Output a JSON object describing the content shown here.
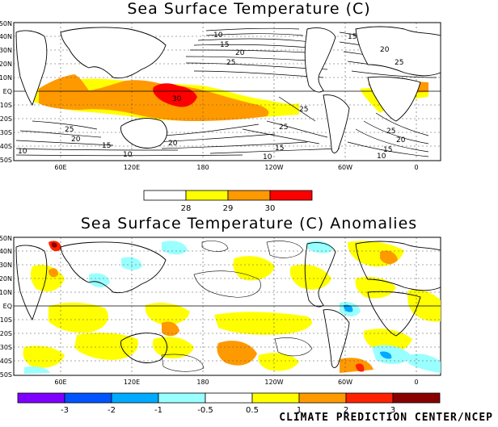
{
  "top": {
    "title": "Sea Surface Temperature (C)",
    "lat_labels": [
      "50N",
      "40N",
      "30N",
      "20N",
      "10N",
      "EQ",
      "10S",
      "20S",
      "30S",
      "40S",
      "50S"
    ],
    "lon_labels": [
      "60E",
      "120E",
      "180",
      "120W",
      "60W",
      "0"
    ],
    "contour_labels": [
      "10",
      "15",
      "20",
      "25",
      "25",
      "30",
      "25",
      "25",
      "20",
      "15",
      "10",
      "10",
      "15",
      "20",
      "25",
      "20",
      "15",
      "10",
      "25",
      "20",
      "15",
      "10"
    ],
    "colorbar": {
      "ticks": [
        "28",
        "29",
        "30"
      ],
      "colors": [
        "#ffffff",
        "#ffff00",
        "#ff9900",
        "#ff0000"
      ]
    }
  },
  "bottom": {
    "title": "Sea Surface Temperature (C) Anomalies",
    "lat_labels": [
      "50N",
      "40N",
      "30N",
      "20N",
      "10N",
      "EQ",
      "10S",
      "20S",
      "30S",
      "40S",
      "50S"
    ],
    "lon_labels": [
      "60E",
      "120E",
      "180",
      "120W",
      "60W",
      "0"
    ],
    "colorbar": {
      "ticks": [
        "-3",
        "-2",
        "-1",
        "-0.5",
        "0.5",
        "1",
        "2",
        "3"
      ],
      "colors": [
        "#8000ff",
        "#0055ff",
        "#00aaff",
        "#99ffff",
        "#ffffff",
        "#ffff00",
        "#ff9900",
        "#ff2200",
        "#880000"
      ]
    }
  },
  "footer": "CLIMATE PREDICTION CENTER/NCEP"
}
